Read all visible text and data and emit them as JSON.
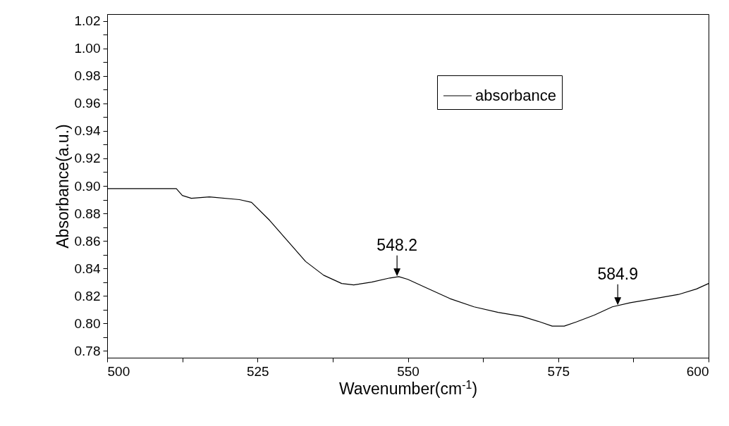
{
  "chart_data": {
    "type": "line",
    "xlabel": "Wavenumber(cm$^{-1}$)",
    "ylabel": "Absorbance(a.u.)",
    "x": [
      500,
      505,
      511.5,
      512.5,
      514,
      517,
      522,
      524,
      527,
      530,
      533,
      536,
      539,
      541,
      544,
      547,
      548.5,
      550,
      553,
      557,
      561,
      565,
      569,
      572,
      574,
      576,
      578,
      581,
      584,
      587,
      591,
      595,
      598,
      600
    ],
    "series": [
      {
        "name": "absorbance",
        "color": "#000000",
        "values": [
          0.898,
          0.898,
          0.898,
          0.893,
          0.891,
          0.892,
          0.89,
          0.888,
          0.875,
          0.86,
          0.845,
          0.835,
          0.829,
          0.828,
          0.83,
          0.833,
          0.834,
          0.832,
          0.826,
          0.818,
          0.812,
          0.808,
          0.805,
          0.801,
          0.798,
          0.798,
          0.801,
          0.806,
          0.812,
          0.815,
          0.818,
          0.821,
          0.825,
          0.829
        ]
      }
    ],
    "xlim": [
      500,
      600
    ],
    "xticks": [
      500,
      {
        "value": 512.5,
        "label": null
      },
      525,
      {
        "value": 537.5,
        "label": null
      },
      550,
      {
        "value": 562.5,
        "label": null
      },
      575,
      {
        "value": 587.5,
        "label": null
      },
      600
    ],
    "ylim": [
      0.775,
      1.025
    ],
    "yticks": [
      0.78,
      {
        "value": 0.79,
        "label": null
      },
      {
        "value": 0.8,
        "label": "0.80"
      },
      {
        "value": 0.81,
        "label": null
      },
      0.82,
      {
        "value": 0.83,
        "label": null
      },
      0.84,
      {
        "value": 0.85,
        "label": null
      },
      0.86,
      {
        "value": 0.87,
        "label": null
      },
      0.88,
      {
        "value": 0.89,
        "label": null
      },
      {
        "value": 0.9,
        "label": "0.90"
      },
      {
        "value": 0.91,
        "label": null
      },
      0.92,
      {
        "value": 0.93,
        "label": null
      },
      0.94,
      {
        "value": 0.95,
        "label": null
      },
      0.96,
      {
        "value": 0.97,
        "label": null
      },
      0.98,
      {
        "value": 0.99,
        "label": null
      },
      {
        "value": 1.0,
        "label": "1.00"
      },
      {
        "value": 1.01,
        "label": null
      },
      1.02
    ],
    "annotations": [
      {
        "text": "548.2",
        "x": 548.2,
        "y": 0.834
      },
      {
        "text": "584.9",
        "x": 584.9,
        "y": 0.813
      }
    ],
    "legend": "top right",
    "grid": false,
    "line_style": "solid",
    "marker": "none"
  }
}
